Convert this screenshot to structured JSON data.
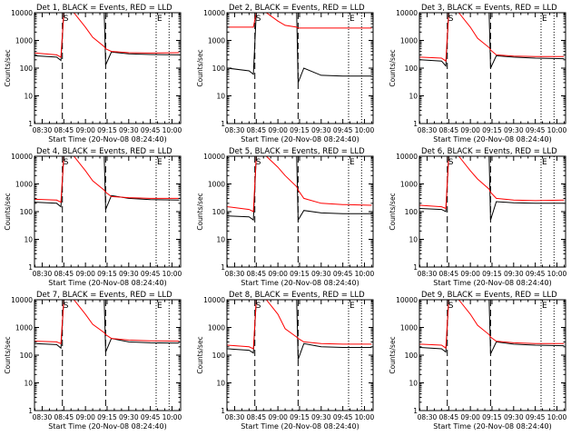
{
  "chart_data": {
    "type": "line",
    "layout": "3x3 grid",
    "shared": {
      "ylabel": "Counts/sec",
      "xlabel": "Start Time (20-Nov-08 08:24:40)",
      "yscale": "log",
      "ylim": [
        1,
        10000
      ],
      "y_ticks": [
        1,
        10,
        100,
        1000,
        10000
      ],
      "y_tick_labels": [
        "1",
        "10",
        "100",
        "1000",
        "10000"
      ],
      "xlim": [
        "08:24:40",
        "10:06:00"
      ],
      "x_tick_labels": [
        "08:30",
        "08:45",
        "09:00",
        "09:15",
        "09:30",
        "09:45",
        "10:00"
      ],
      "series_colors": {
        "events": "#000000",
        "lld": "#ff0000"
      },
      "markers": [
        {
          "time": "08:44",
          "style": "dashed",
          "label": "S"
        },
        {
          "time": "09:14",
          "style": "dashed",
          "label": ""
        },
        {
          "time": "09:49",
          "style": "dotted",
          "label": "E"
        },
        {
          "time": "09:58",
          "style": "dotted",
          "label": ""
        }
      ]
    },
    "panels": [
      {
        "title": "Det 1, BLACK = Events, RED = LLD",
        "series": [
          {
            "name": "Events",
            "color": "#000000",
            "x": [
              "08:25",
              "08:40",
              "08:43",
              "08:45",
              "08:52",
              "09:00",
              "09:05",
              "09:13",
              "09:14",
              "09:18",
              "09:30",
              "09:45",
              "10:05"
            ],
            "y": [
              280,
              250,
              190,
              10000,
              10000,
              10000,
              10000,
              10000,
              130,
              380,
              330,
              310,
              300
            ]
          },
          {
            "name": "LLD",
            "color": "#ff0000",
            "x": [
              "08:25",
              "08:40",
              "08:43",
              "08:45",
              "08:52",
              "09:00",
              "09:05",
              "09:13",
              "09:14",
              "09:18",
              "09:30",
              "09:45",
              "10:05"
            ],
            "y": [
              350,
              300,
              250,
              10000,
              10000,
              3000,
              1300,
              600,
              500,
              400,
              360,
              350,
              360
            ]
          }
        ]
      },
      {
        "title": "Det 2, BLACK = Events, RED = LLD",
        "series": [
          {
            "name": "Events",
            "color": "#000000",
            "x": [
              "08:25",
              "08:40",
              "08:43",
              "08:45",
              "08:52",
              "09:00",
              "09:05",
              "09:13",
              "09:14",
              "09:18",
              "09:30",
              "09:45",
              "10:05"
            ],
            "y": [
              100,
              80,
              60,
              10000,
              10000,
              10000,
              10000,
              10000,
              30,
              100,
              55,
              52,
              52
            ]
          },
          {
            "name": "LLD",
            "color": "#ff0000",
            "x": [
              "08:25",
              "08:40",
              "08:43",
              "08:45",
              "08:52",
              "09:00",
              "09:05",
              "09:13",
              "09:14",
              "09:18",
              "09:30",
              "09:45",
              "10:05"
            ],
            "y": [
              3000,
              3000,
              3000,
              10000,
              10000,
              5000,
              3500,
              3000,
              2800,
              2800,
              2800,
              2800,
              2800
            ]
          }
        ]
      },
      {
        "title": "Det 3, BLACK = Events, RED = LLD",
        "series": [
          {
            "name": "Events",
            "color": "#000000",
            "x": [
              "08:25",
              "08:40",
              "08:43",
              "08:45",
              "08:52",
              "09:00",
              "09:05",
              "09:13",
              "09:14",
              "09:18",
              "09:30",
              "09:45",
              "10:05"
            ],
            "y": [
              200,
              180,
              120,
              10000,
              10000,
              10000,
              10000,
              10000,
              100,
              280,
              250,
              230,
              220
            ]
          },
          {
            "name": "LLD",
            "color": "#ff0000",
            "x": [
              "08:25",
              "08:40",
              "08:43",
              "08:45",
              "08:52",
              "09:00",
              "09:05",
              "09:13",
              "09:14",
              "09:18",
              "09:30",
              "09:45",
              "10:05"
            ],
            "y": [
              250,
              230,
              180,
              10000,
              10000,
              3000,
              1200,
              550,
              450,
              300,
              270,
              260,
              260
            ]
          }
        ]
      },
      {
        "title": "Det 4, BLACK = Events, RED = LLD",
        "series": [
          {
            "name": "Events",
            "color": "#000000",
            "x": [
              "08:25",
              "08:40",
              "08:43",
              "08:45",
              "08:52",
              "09:00",
              "09:05",
              "09:13",
              "09:14",
              "09:18",
              "09:30",
              "09:45",
              "10:05"
            ],
            "y": [
              220,
              200,
              150,
              10000,
              10000,
              10000,
              10000,
              10000,
              120,
              380,
              300,
              270,
              260
            ]
          },
          {
            "name": "LLD",
            "color": "#ff0000",
            "x": [
              "08:25",
              "08:40",
              "08:43",
              "08:45",
              "08:52",
              "09:00",
              "09:05",
              "09:13",
              "09:14",
              "09:18",
              "09:30",
              "09:45",
              "10:05"
            ],
            "y": [
              280,
              260,
              220,
              10000,
              10000,
              3000,
              1300,
              600,
              500,
              350,
              320,
              300,
              300
            ]
          }
        ]
      },
      {
        "title": "Det 5, BLACK = Events, RED = LLD",
        "series": [
          {
            "name": "Events",
            "color": "#000000",
            "x": [
              "08:25",
              "08:40",
              "08:43",
              "08:45",
              "08:52",
              "09:00",
              "09:05",
              "09:13",
              "09:14",
              "09:18",
              "09:30",
              "09:45",
              "10:05"
            ],
            "y": [
              70,
              65,
              50,
              10000,
              10000,
              10000,
              10000,
              10000,
              50,
              110,
              90,
              85,
              85
            ]
          },
          {
            "name": "LLD",
            "color": "#ff0000",
            "x": [
              "08:25",
              "08:40",
              "08:43",
              "08:45",
              "08:52",
              "09:00",
              "09:05",
              "09:13",
              "09:14",
              "09:18",
              "09:30",
              "09:45",
              "10:05"
            ],
            "y": [
              150,
              120,
              100,
              10000,
              10000,
              4000,
              2000,
              800,
              600,
              300,
              200,
              180,
              170
            ]
          }
        ]
      },
      {
        "title": "Det 6, BLACK = Events, RED = LLD",
        "series": [
          {
            "name": "Events",
            "color": "#000000",
            "x": [
              "08:25",
              "08:40",
              "08:43",
              "08:45",
              "08:52",
              "09:00",
              "09:05",
              "09:13",
              "09:14",
              "09:18",
              "09:30",
              "09:45",
              "10:05"
            ],
            "y": [
              130,
              120,
              100,
              10000,
              10000,
              10000,
              10000,
              10000,
              50,
              230,
              210,
              200,
              200
            ]
          },
          {
            "name": "LLD",
            "color": "#ff0000",
            "x": [
              "08:25",
              "08:40",
              "08:43",
              "08:45",
              "08:52",
              "09:00",
              "09:05",
              "09:13",
              "09:14",
              "09:18",
              "09:30",
              "09:45",
              "10:05"
            ],
            "y": [
              170,
              150,
              130,
              10000,
              10000,
              3000,
              1500,
              650,
              500,
              300,
              260,
              250,
              260
            ]
          }
        ]
      },
      {
        "title": "Det 7, BLACK = Events, RED = LLD",
        "series": [
          {
            "name": "Events",
            "color": "#000000",
            "x": [
              "08:25",
              "08:40",
              "08:43",
              "08:45",
              "08:52",
              "09:00",
              "09:05",
              "09:13",
              "09:14",
              "09:18",
              "09:30",
              "09:45",
              "10:05"
            ],
            "y": [
              260,
              240,
              180,
              10000,
              10000,
              10000,
              10000,
              10000,
              130,
              400,
              300,
              280,
              270
            ]
          },
          {
            "name": "LLD",
            "color": "#ff0000",
            "x": [
              "08:25",
              "08:40",
              "08:43",
              "08:45",
              "08:52",
              "09:00",
              "09:05",
              "09:13",
              "09:14",
              "09:18",
              "09:30",
              "09:45",
              "10:05"
            ],
            "y": [
              320,
              300,
              260,
              10000,
              10000,
              3000,
              1300,
              650,
              550,
              400,
              350,
              330,
              320
            ]
          }
        ]
      },
      {
        "title": "Det 8, BLACK = Events, RED = LLD",
        "series": [
          {
            "name": "Events",
            "color": "#000000",
            "x": [
              "08:25",
              "08:40",
              "08:43",
              "08:45",
              "08:52",
              "09:00",
              "09:05",
              "09:13",
              "09:14",
              "09:18",
              "09:30",
              "09:45",
              "10:05"
            ],
            "y": [
              170,
              150,
              120,
              10000,
              10000,
              10000,
              10000,
              10000,
              70,
              260,
              200,
              190,
              190
            ]
          },
          {
            "name": "LLD",
            "color": "#ff0000",
            "x": [
              "08:25",
              "08:40",
              "08:43",
              "08:45",
              "08:52",
              "09:00",
              "09:05",
              "09:13",
              "09:14",
              "09:18",
              "09:30",
              "09:45",
              "10:05"
            ],
            "y": [
              230,
              200,
              170,
              10000,
              10000,
              3000,
              900,
              450,
              400,
              300,
              260,
              250,
              250
            ]
          }
        ]
      },
      {
        "title": "Det 9, BLACK = Events, RED = LLD",
        "series": [
          {
            "name": "Events",
            "color": "#000000",
            "x": [
              "08:25",
              "08:40",
              "08:43",
              "08:45",
              "08:52",
              "09:00",
              "09:05",
              "09:13",
              "09:14",
              "09:18",
              "09:30",
              "09:45",
              "10:05"
            ],
            "y": [
              190,
              170,
              130,
              10000,
              10000,
              10000,
              10000,
              10000,
              110,
              300,
              250,
              230,
              220
            ]
          },
          {
            "name": "LLD",
            "color": "#ff0000",
            "x": [
              "08:25",
              "08:40",
              "08:43",
              "08:45",
              "08:52",
              "09:00",
              "09:05",
              "09:13",
              "09:14",
              "09:18",
              "09:30",
              "09:45",
              "10:05"
            ],
            "y": [
              250,
              230,
              180,
              10000,
              10000,
              3000,
              1200,
              550,
              450,
              320,
              280,
              260,
              260
            ]
          }
        ]
      }
    ]
  }
}
